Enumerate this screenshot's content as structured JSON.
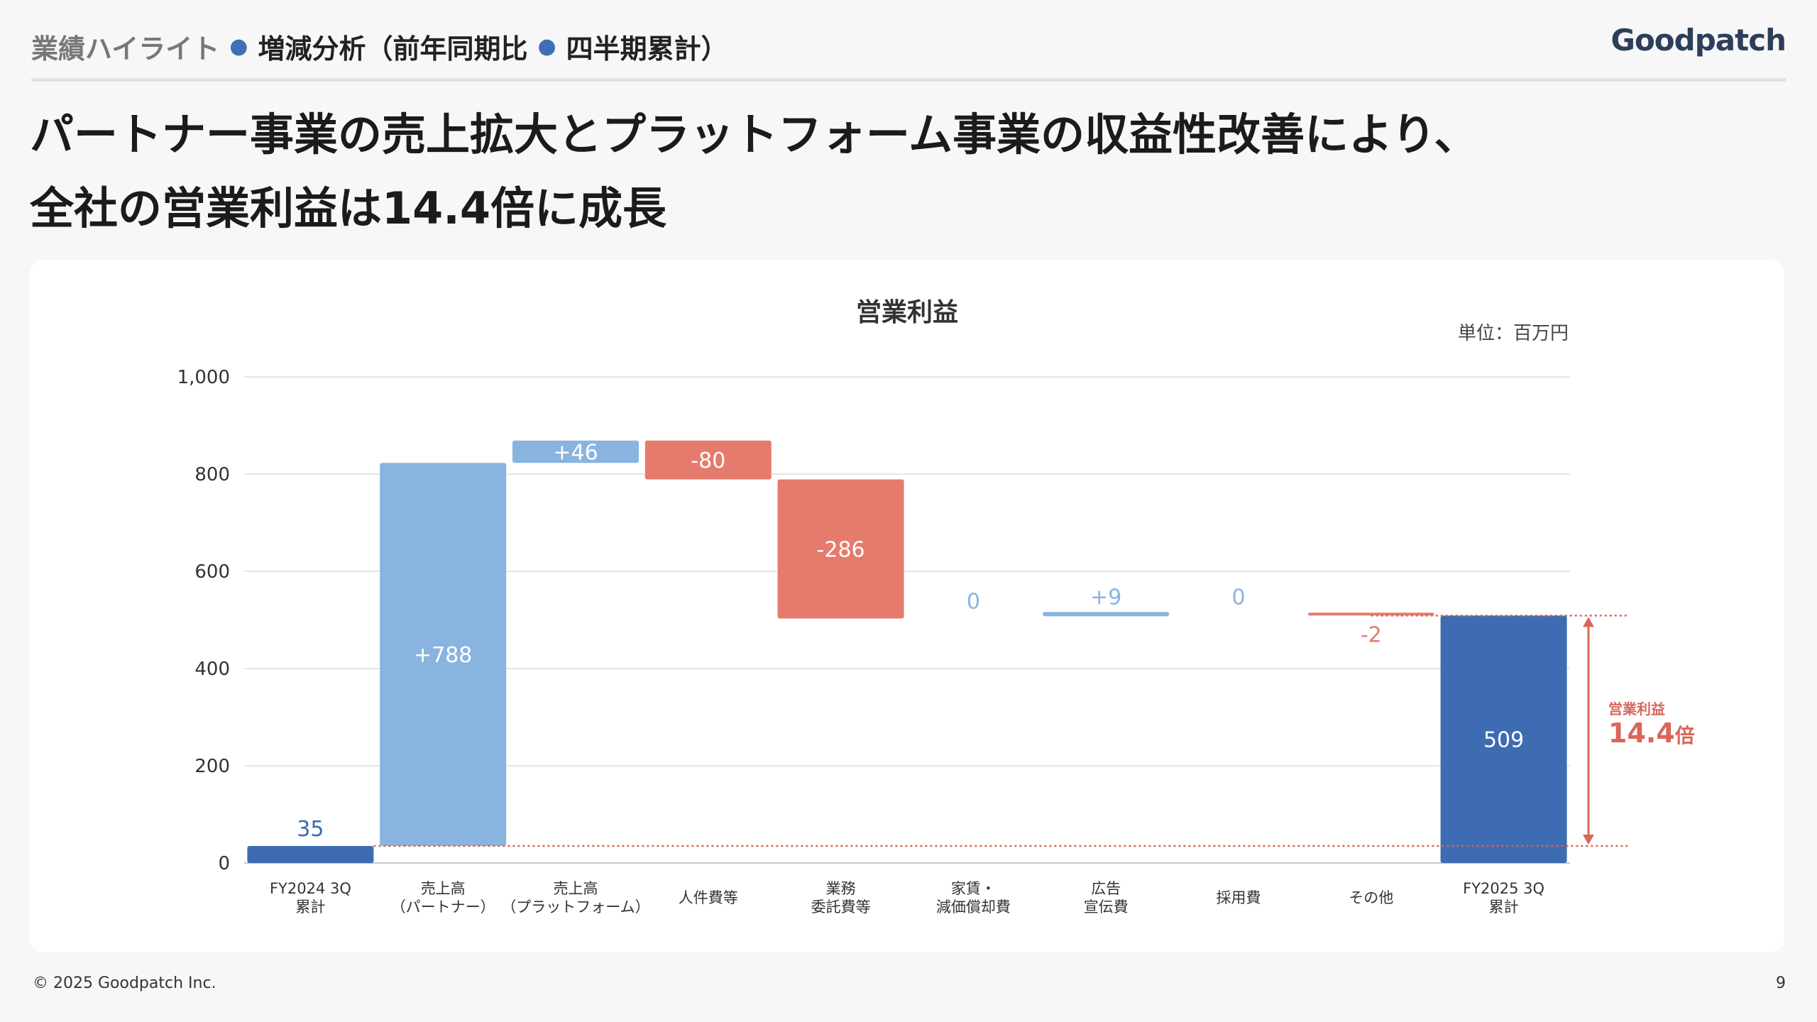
{
  "header": {
    "breadcrumb_section": "業績ハイライト",
    "breadcrumb_page": "増減分析（前年同期比",
    "breadcrumb_suffix": "四半期累計）",
    "logo_text": "Goodpatch"
  },
  "headline": {
    "line1": "パートナー事業の売上拡大とプラットフォーム事業の収益性改善により、",
    "line2": "全社の営業利益は14.4倍に成長"
  },
  "colors": {
    "increase": "#89b4df",
    "decrease": "#e57b6c",
    "total": "#3d6cb2",
    "grid": "#e6e6e6",
    "accent": "#d9665a"
  },
  "chart_data": {
    "type": "waterfall",
    "title": "営業利益",
    "unit_label": "単位：百万円",
    "ylim": [
      0,
      1000
    ],
    "yticks": [
      "0",
      "200",
      "400",
      "600",
      "800",
      "1,000"
    ],
    "ytick_values": [
      0,
      200,
      400,
      600,
      800,
      1000
    ],
    "categories": [
      [
        "FY2024 3Q",
        "累計"
      ],
      [
        "売上高",
        "（パートナー）"
      ],
      [
        "売上高",
        "（プラットフォーム）"
      ],
      [
        "人件費等"
      ],
      [
        "業務",
        "委託費等"
      ],
      [
        "家賃・",
        "減価償却費"
      ],
      [
        "広告",
        "宣伝費"
      ],
      [
        "採用費"
      ],
      [
        "その他"
      ],
      [
        "FY2025 3Q",
        "累計"
      ]
    ],
    "values": [
      35,
      788,
      46,
      -80,
      -286,
      0,
      9,
      0,
      -2,
      509
    ],
    "kinds": [
      "total",
      "delta",
      "delta",
      "delta",
      "delta",
      "delta",
      "delta",
      "delta",
      "delta",
      "total"
    ],
    "labels": [
      "35",
      "+788",
      "+46",
      "-80",
      "-286",
      "0",
      "+9",
      "0",
      "-2",
      "509"
    ],
    "annotation": {
      "label": "営業利益",
      "value": "14.4",
      "suffix": "倍"
    }
  },
  "footer": {
    "copyright": "© 2025 Goodpatch Inc.",
    "page_number": "9"
  }
}
